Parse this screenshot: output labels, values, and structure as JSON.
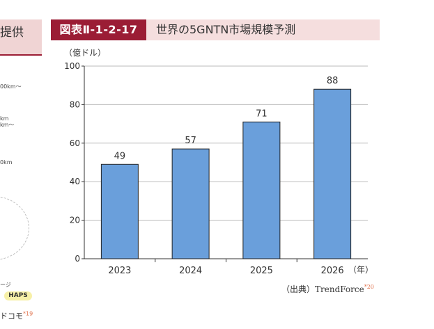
{
  "left_panel": {
    "header_text": "提供",
    "fragments": [
      "00km〜",
      "km",
      "km〜",
      "0km",
      "ージ"
    ],
    "badge": "HAPS",
    "source": "ドコモ",
    "source_ref": "*19"
  },
  "figure": {
    "number": "図表Ⅱ-1-2-17",
    "title": "世界の5GNTN市場規模予測",
    "source": "（出典）TrendForce",
    "source_ref": "*20"
  },
  "chart_data": {
    "type": "bar",
    "categories": [
      "2023",
      "2024",
      "2025",
      "2026"
    ],
    "values": [
      49,
      57,
      71,
      88
    ],
    "title": "",
    "xlabel": "（年）",
    "ylabel": "（億ドル）",
    "ylim": [
      0,
      100
    ],
    "yticks": [
      0,
      20,
      40,
      60,
      80,
      100
    ],
    "grid": true,
    "bar_color": "#6a9fdb",
    "bar_stroke": "#222222"
  }
}
